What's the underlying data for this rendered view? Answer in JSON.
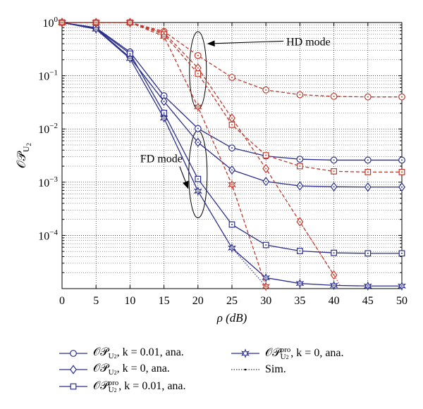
{
  "chart_data": {
    "type": "line",
    "xlabel": "ρ (dB)",
    "ylabel": "𝒪𝒫",
    "ylabel_sub": "U",
    "ylabel_subsub": "2",
    "xlim": [
      0,
      50
    ],
    "ylim_log10": [
      -5,
      0
    ],
    "y_scale": "log",
    "grid": true,
    "x_ticks": [
      0,
      5,
      10,
      15,
      20,
      25,
      30,
      35,
      40,
      45,
      50
    ],
    "y_tick_labels": [
      {
        "exp": 0,
        "label": "10",
        "sup": "0"
      },
      {
        "exp": -1,
        "label": "10",
        "sup": "−1"
      },
      {
        "exp": -2,
        "label": "10",
        "sup": "−2"
      },
      {
        "exp": -3,
        "label": "10",
        "sup": "−3"
      },
      {
        "exp": -4,
        "label": "10",
        "sup": "−4"
      }
    ],
    "annotations": [
      {
        "text": "HD mode",
        "ellipse_center": [
          20,
          -0.9
        ],
        "label_pos": [
          33,
          -0.35
        ]
      },
      {
        "text": "FD mode",
        "ellipse_center": [
          20,
          -2.85
        ],
        "label_pos": [
          11.5,
          -2.6
        ]
      }
    ],
    "series": [
      {
        "key": "fd_circle",
        "marker": "circle",
        "color": "#2b2e8c",
        "dash": "solid",
        "x": [
          0,
          5,
          10,
          15,
          20,
          25,
          30,
          35,
          40,
          45,
          50
        ],
        "y": [
          1.0,
          0.8,
          0.28,
          0.042,
          0.0102,
          0.0044,
          0.0031,
          0.0027,
          0.0026,
          0.0026,
          0.0026
        ]
      },
      {
        "key": "fd_diamond",
        "marker": "diamond",
        "color": "#2b2e8c",
        "dash": "solid",
        "x": [
          0,
          5,
          10,
          15,
          20,
          25,
          30,
          35,
          40,
          45,
          50
        ],
        "y": [
          1.0,
          0.78,
          0.22,
          0.033,
          0.0056,
          0.0017,
          0.00103,
          0.00085,
          0.00082,
          0.00081,
          0.00081
        ]
      },
      {
        "key": "fd_square",
        "marker": "square",
        "color": "#2b2e8c",
        "dash": "solid",
        "x": [
          0,
          5,
          10,
          15,
          20,
          25,
          30,
          35,
          40,
          45,
          50
        ],
        "y": [
          1.0,
          0.78,
          0.26,
          0.02,
          0.00115,
          0.00016,
          6.6e-05,
          5.1e-05,
          4.7e-05,
          4.6e-05,
          4.6e-05
        ]
      },
      {
        "key": "fd_star",
        "marker": "star",
        "color": "#2b2e8c",
        "dash": "solid",
        "x": [
          0,
          5,
          10,
          15,
          20,
          25,
          30,
          35,
          40,
          45,
          50
        ],
        "y": [
          1.0,
          0.75,
          0.21,
          0.016,
          0.00068,
          5.8e-05,
          1.6e-05,
          1.25e-05,
          1.15e-05,
          1.12e-05,
          1.12e-05
        ]
      },
      {
        "key": "hd_circle",
        "marker": "circle",
        "color": "#c0392b",
        "dash": "dashed",
        "x": [
          0,
          5,
          10,
          15,
          20,
          25,
          30,
          35,
          40,
          45,
          50
        ],
        "y": [
          1.0,
          1.0,
          1.0,
          0.68,
          0.24,
          0.093,
          0.054,
          0.044,
          0.041,
          0.04,
          0.04
        ]
      },
      {
        "key": "hd_diamond",
        "marker": "diamond",
        "color": "#c0392b",
        "dash": "dashed",
        "x": [
          0,
          5,
          10,
          15,
          20,
          25,
          30,
          35,
          40
        ],
        "y": [
          1.0,
          1.0,
          1.0,
          0.64,
          0.14,
          0.016,
          0.0018,
          0.00018,
          1.8e-05
        ]
      },
      {
        "key": "hd_square",
        "marker": "square",
        "color": "#c0392b",
        "dash": "dashed",
        "x": [
          0,
          5,
          10,
          15,
          20,
          25,
          30,
          35,
          40,
          45,
          50
        ],
        "y": [
          1.0,
          1.0,
          1.0,
          0.6,
          0.11,
          0.012,
          0.0032,
          0.002,
          0.0016,
          0.00155,
          0.00155
        ]
      },
      {
        "key": "hd_star",
        "marker": "star",
        "color": "#c0392b",
        "dash": "dashed",
        "x": [
          0,
          5,
          10,
          15,
          20,
          25,
          30
        ],
        "y": [
          1.0,
          1.0,
          1.0,
          0.55,
          0.026,
          0.0009,
          1.1e-05
        ]
      }
    ],
    "sim_series": [
      {
        "key": "sim_fd_star",
        "color": "#2b2e8c",
        "x": [
          25,
          30
        ],
        "y": [
          5.8e-05,
          1.1e-05
        ]
      },
      {
        "key": "sim_hd_diamond",
        "color": "#c0392b",
        "x": [
          35,
          40,
          41
        ],
        "y": [
          0.00018,
          1.8e-05,
          1.1e-05
        ]
      }
    ]
  },
  "legend": {
    "items": [
      {
        "marker": "circle",
        "sup": "",
        "text_tail": ", k = 0.01, ana."
      },
      {
        "marker": "star",
        "sup": "pro",
        "text_tail": ", k = 0, ana."
      },
      {
        "marker": "diamond",
        "sup": "",
        "text_tail": ", k = 0, ana."
      },
      {
        "marker": "sim",
        "sup": "",
        "text_tail": "Sim."
      },
      {
        "marker": "square",
        "sup": "pro",
        "text_tail": ", k = 0.01, ana."
      }
    ],
    "op_symbol": "𝒪𝒫",
    "sub": "U",
    "subsub": "2",
    "line_color": "#2b2e8c"
  }
}
